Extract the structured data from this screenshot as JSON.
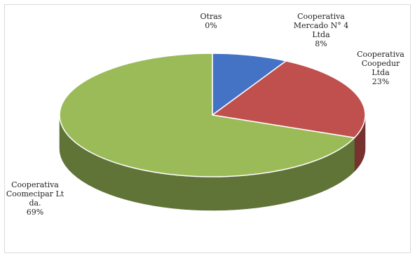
{
  "chart_data": {
    "type": "pie",
    "style": "3d",
    "slices": [
      {
        "label": [
          "Otras"
        ],
        "percent_label": "0%",
        "value": 0,
        "color": "#4472c4"
      },
      {
        "label": [
          "Cooperativa",
          "Mercado N° 4",
          "Ltda"
        ],
        "percent_label": "8%",
        "value": 8,
        "color": "#4472c4"
      },
      {
        "label": [
          "Cooperativa",
          "Coopedur",
          "Ltda"
        ],
        "percent_label": "23%",
        "value": 23,
        "color": "#c0504d"
      },
      {
        "label": [
          "Cooperativa",
          "Coomecipar Lt",
          "da."
        ],
        "percent_label": "69%",
        "value": 69,
        "color": "#9bbb59"
      }
    ],
    "title": "",
    "legend": "none"
  }
}
